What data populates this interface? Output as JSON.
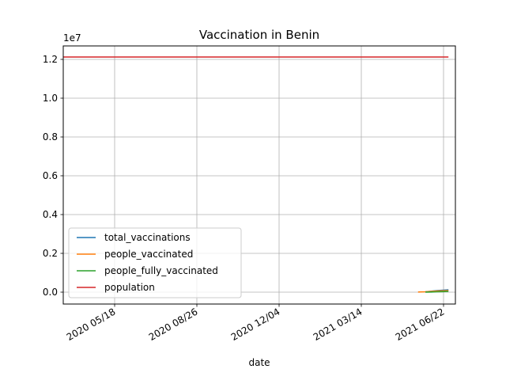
{
  "chart_data": {
    "type": "line",
    "title": "Vaccination in Benin",
    "xlabel": "date",
    "ylabel": "",
    "y_offset_label": "1e7",
    "x_ticks": [
      "2020 05/18",
      "2020 08/26",
      "2020 12/04",
      "2021 03/14",
      "2021 06/22"
    ],
    "y_ticks": [
      "0.0",
      "0.2",
      "0.4",
      "0.6",
      "0.8",
      "1.0",
      "1.2"
    ],
    "y_tick_values": [
      0.0,
      0.2,
      0.4,
      0.6,
      0.8,
      1.0,
      1.2
    ],
    "ylim": [
      -0.13,
      1.27
    ],
    "grid": true,
    "legend_position": "lower-left",
    "series": [
      {
        "name": "total_vaccinations",
        "color": "#1f77b4",
        "x": [
          "2021-05-31",
          "2021-06-07",
          "2021-06-14",
          "2021-06-21",
          "2021-06-28"
        ],
        "values": [
          0.002,
          0.005,
          0.008,
          0.01,
          0.012
        ]
      },
      {
        "name": "people_vaccinated",
        "color": "#ff7f0e",
        "x": [
          "2021-05-22",
          "2021-05-31",
          "2021-06-07",
          "2021-06-14",
          "2021-06-21",
          "2021-06-28"
        ],
        "values": [
          0.001,
          0.002,
          0.004,
          0.006,
          0.007,
          0.008
        ]
      },
      {
        "name": "people_fully_vaccinated",
        "color": "#2ca02c",
        "x": [
          "2021-05-31",
          "2021-06-07",
          "2021-06-14",
          "2021-06-21",
          "2021-06-28"
        ],
        "values": [
          0.0005,
          0.001,
          0.002,
          0.003,
          0.004
        ]
      },
      {
        "name": "population",
        "color": "#d62728",
        "x": [
          "2020-03-08",
          "2021-06-28"
        ],
        "values": [
          1.2123,
          1.2123
        ]
      }
    ]
  }
}
